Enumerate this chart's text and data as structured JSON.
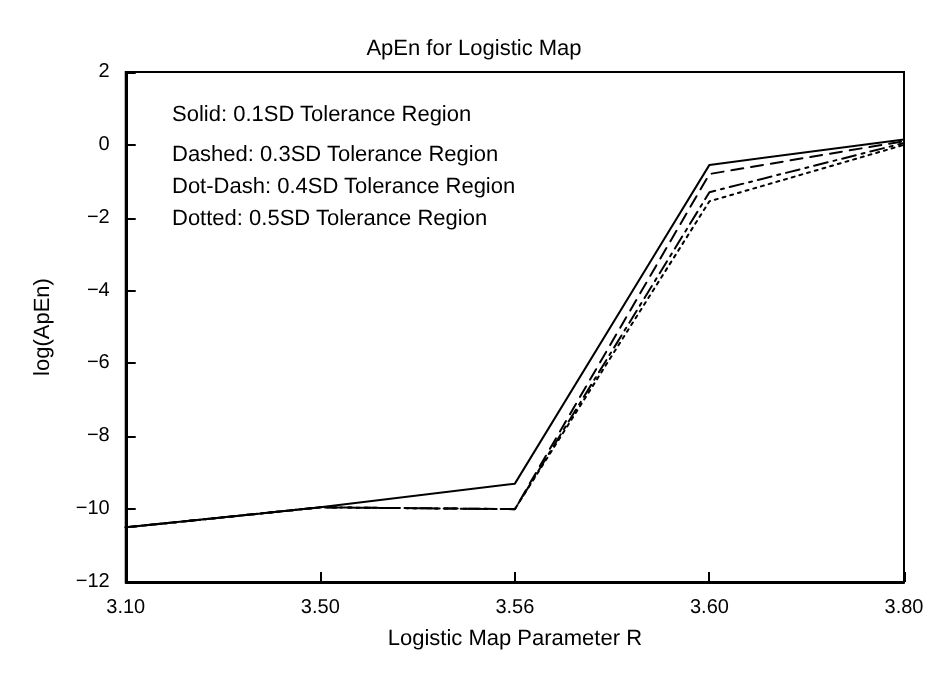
{
  "chart_data": {
    "type": "line",
    "title": "ApEn for Logistic Map",
    "xlabel": "Logistic Map Parameter R",
    "ylabel": "log(ApEn)",
    "categories": [
      "3.10",
      "3.50",
      "3.56",
      "3.60",
      "3.80"
    ],
    "ylim": [
      -12,
      2
    ],
    "yticks": [
      -12,
      -10,
      -8,
      -6,
      -4,
      -2,
      0,
      2
    ],
    "grid": false,
    "marker": "none",
    "series": [
      {
        "color": "#000000",
        "line_style": "solid",
        "values": [
          -10.5,
          -9.95,
          -9.3,
          -0.55,
          0.15
        ]
      },
      {
        "color": "#000000",
        "line_style": "dashed",
        "values": [
          -10.5,
          -9.95,
          -10,
          -0.8,
          0.1
        ]
      },
      {
        "color": "#000000",
        "line_style": "dashdot",
        "values": [
          -10.5,
          -9.95,
          -10,
          -1.3,
          0.05
        ]
      },
      {
        "color": "#000000",
        "line_style": "dotted",
        "values": [
          -10.5,
          -9.95,
          -10,
          -1.55,
          0
        ]
      }
    ],
    "annotations": [
      "Solid: 0.1SD Tolerance Region",
      "Dashed: 0.3SD Tolerance Region",
      "Dot-Dash: 0.4SD Tolerance Region",
      "Dotted: 0.5SD Tolerance Region"
    ]
  }
}
